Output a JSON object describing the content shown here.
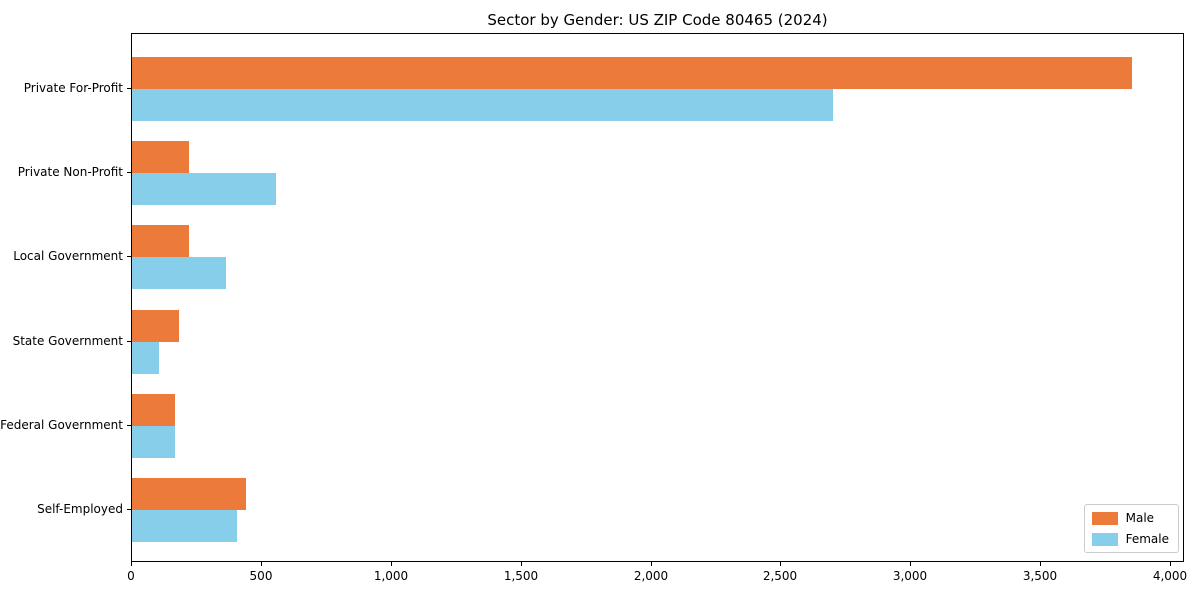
{
  "chart_data": {
    "type": "bar",
    "orientation": "horizontal",
    "title": "Sector by Gender: US ZIP Code 80465 (2024)",
    "categories": [
      "Private For-Profit",
      "Private Non-Profit",
      "Local Government",
      "State Government",
      "Federal Government",
      "Self-Employed"
    ],
    "series": [
      {
        "name": "Male",
        "color": "#EC7A3B",
        "values": [
          3850,
          220,
          220,
          180,
          165,
          440
        ]
      },
      {
        "name": "Female",
        "color": "#87CEEB",
        "values": [
          2700,
          555,
          360,
          105,
          165,
          405
        ]
      }
    ],
    "xlabel": "",
    "ylabel": "",
    "xlim": [
      0,
      4000
    ],
    "x_ticks": [
      0,
      500,
      1000,
      1500,
      2000,
      2500,
      3000,
      3500,
      4000
    ],
    "x_tick_labels": [
      "0",
      "500",
      "1,000",
      "1,500",
      "2,000",
      "2,500",
      "3,000",
      "3,500",
      "4,000"
    ],
    "grid": false,
    "legend_position": "lower right",
    "axis_color": "#000000",
    "background_color": "#ffffff"
  }
}
